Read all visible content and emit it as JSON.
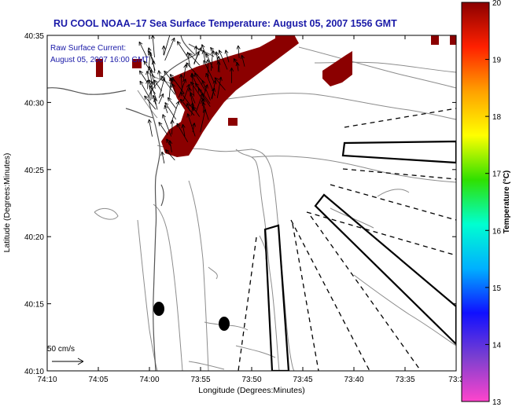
{
  "header": {
    "title": "RU COOL  NOAA–17  Sea Surface Temperature:  August 05, 2007 1556 GMT"
  },
  "current_info": {
    "line1": "Raw Surface Current:",
    "line2": "August 05, 2007 16:00 GMT"
  },
  "scale_bar": {
    "label": "50 cm/s"
  },
  "axes": {
    "x_label": "Longitude (Degrees:Minutes)",
    "y_label": "Latitude (Degrees:Minutes)",
    "x_ticks": [
      "74:10",
      "74:05",
      "74:00",
      "73:55",
      "73:50",
      "73:45",
      "73:40",
      "73:35",
      "73:3"
    ],
    "y_ticks": [
      "40:35",
      "40:30",
      "40:25",
      "40:20",
      "40:15",
      "40:10"
    ]
  },
  "colorbar": {
    "label": "Temperature (°C)",
    "ticks": [
      "20",
      "19",
      "18",
      "17",
      "16",
      "15",
      "14",
      "13"
    ],
    "min": 13,
    "max": 20,
    "colors": [
      "#ff44cc",
      "#7b3fd0",
      "#1010ff",
      "#00b0ff",
      "#00ffd0",
      "#30e000",
      "#ffff00",
      "#ffa000",
      "#ff2000",
      "#8b0000"
    ]
  },
  "colors": {
    "sst_patch": "#8b0000",
    "title": "#1a1aa8",
    "contour": "#8c8c8c",
    "coast": "#555555"
  }
}
